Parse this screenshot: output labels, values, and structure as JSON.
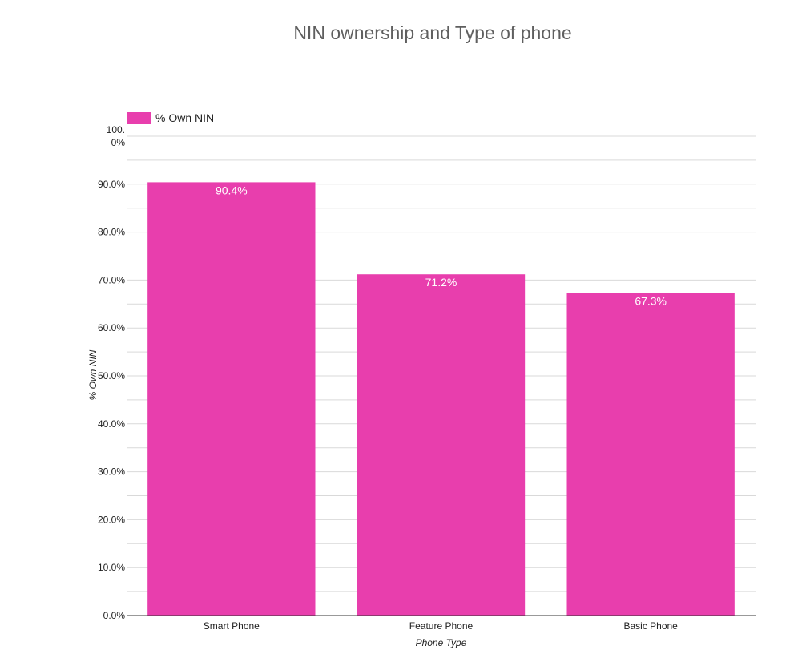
{
  "chart_data": {
    "type": "bar",
    "title": "NIN ownership and Type of phone",
    "xlabel": "Phone Type",
    "ylabel": "% Own NIN",
    "categories": [
      "Smart Phone",
      "Feature Phone",
      "Basic Phone"
    ],
    "series": [
      {
        "name": "% Own NIN",
        "values": [
          90.4,
          71.2,
          67.3
        ]
      }
    ],
    "data_labels": [
      "90.4%",
      "71.2%",
      "67.3%"
    ],
    "ylim": [
      0,
      100
    ],
    "yticks": [
      "0.0%",
      "10.0%",
      "20.0%",
      "30.0%",
      "40.0%",
      "50.0%",
      "60.0%",
      "70.0%",
      "80.0%",
      "90.0%",
      "100.0%"
    ],
    "grid": true,
    "legend_position": "top-left",
    "colors": {
      "bar": "#e83ead",
      "title": "#5f5f5f",
      "gridline": "#d9d9d9",
      "axis": "#333333"
    }
  }
}
